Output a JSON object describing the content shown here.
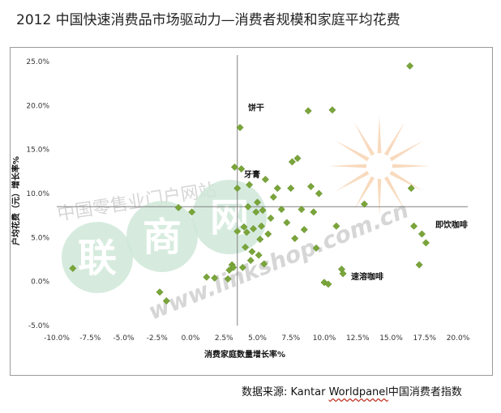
{
  "title": "2012 中国快速消费品市场驱动力—消费者规模和家庭平均花费",
  "source": {
    "prefix": "数据来源: Kantar ",
    "brand": "Worldpanel",
    "suffix": "中国消费者指数"
  },
  "watermark": {
    "cn_text": "中国零售业门户网站",
    "logo_chars": [
      "联",
      "商",
      "网"
    ],
    "domain": "www.linkshop.com.cn",
    "colors": {
      "circle": "#cfe8d8",
      "char": "#ffffff",
      "sun": "#f6cda8",
      "text": "#d0d0d0"
    }
  },
  "chart_data": {
    "type": "scatter",
    "xlabel": "消费家庭数量增长率%",
    "ylabel": "户均花费（元）增长率%",
    "xlim": [
      -10.0,
      20.0
    ],
    "ylim": [
      -5.0,
      25.0
    ],
    "x_ticks": [
      "-10.0%",
      "-7.5%",
      "-5.0%",
      "-2.5%",
      "0.0%",
      "2.5%",
      "5.0%",
      "7.5%",
      "10.0%",
      "12.5%",
      "15.0%",
      "17.5%",
      "20.0%"
    ],
    "y_ticks": [
      "25.0%",
      "20.0%",
      "15.0%",
      "10.0%",
      "5.0%",
      "0.0%",
      "-5.0%"
    ],
    "reference_lines": {
      "x": 3.5,
      "y": 8.5
    },
    "marker_color": "#7aa53a",
    "annotations": [
      {
        "text": "饼干",
        "x": 4.3,
        "y": 19.8
      },
      {
        "text": "牙膏",
        "x": 4.0,
        "y": 12.2
      },
      {
        "text": "即饮咖啡",
        "x": 18.3,
        "y": 6.5
      },
      {
        "text": "速溶咖啡",
        "x": 12.0,
        "y": 0.6
      }
    ],
    "points": [
      [
        -8.8,
        1.5
      ],
      [
        -2.3,
        -1.2
      ],
      [
        -1.8,
        -2.2
      ],
      [
        -0.9,
        8.4
      ],
      [
        0.1,
        7.9
      ],
      [
        1.2,
        0.5
      ],
      [
        1.8,
        0.4
      ],
      [
        2.8,
        0.3
      ],
      [
        2.9,
        1.3
      ],
      [
        3.1,
        1.9
      ],
      [
        3.2,
        1.6
      ],
      [
        3.3,
        13.0
      ],
      [
        3.5,
        10.6
      ],
      [
        3.5,
        5.7
      ],
      [
        3.7,
        17.5
      ],
      [
        3.8,
        12.8
      ],
      [
        3.9,
        1.6
      ],
      [
        4.0,
        6.2
      ],
      [
        4.1,
        3.9
      ],
      [
        4.2,
        5.6
      ],
      [
        4.3,
        8.5
      ],
      [
        4.4,
        11.0
      ],
      [
        4.5,
        2.4
      ],
      [
        4.6,
        3.4
      ],
      [
        4.7,
        6.0
      ],
      [
        4.9,
        7.9
      ],
      [
        5.0,
        9.0
      ],
      [
        5.1,
        3.0
      ],
      [
        5.2,
        4.8
      ],
      [
        5.3,
        6.3
      ],
      [
        5.4,
        8.1
      ],
      [
        5.5,
        2.0
      ],
      [
        5.6,
        11.6
      ],
      [
        5.8,
        5.4
      ],
      [
        6.0,
        7.2
      ],
      [
        6.2,
        9.6
      ],
      [
        6.5,
        10.6
      ],
      [
        6.8,
        8.2
      ],
      [
        7.2,
        6.7
      ],
      [
        7.5,
        10.6
      ],
      [
        7.6,
        13.6
      ],
      [
        7.8,
        4.9
      ],
      [
        8.0,
        14.0
      ],
      [
        8.3,
        8.2
      ],
      [
        8.5,
        5.9
      ],
      [
        8.8,
        19.4
      ],
      [
        9.0,
        10.8
      ],
      [
        9.2,
        7.9
      ],
      [
        9.4,
        3.8
      ],
      [
        9.6,
        10.0
      ],
      [
        10.0,
        -0.1
      ],
      [
        10.3,
        -0.3
      ],
      [
        10.6,
        19.5
      ],
      [
        10.9,
        6.3
      ],
      [
        11.3,
        1.4
      ],
      [
        11.4,
        0.9
      ],
      [
        13.0,
        8.8
      ],
      [
        16.4,
        24.5
      ],
      [
        16.5,
        10.6
      ],
      [
        16.7,
        6.3
      ],
      [
        17.1,
        1.9
      ],
      [
        17.3,
        5.4
      ],
      [
        17.6,
        4.4
      ]
    ]
  }
}
